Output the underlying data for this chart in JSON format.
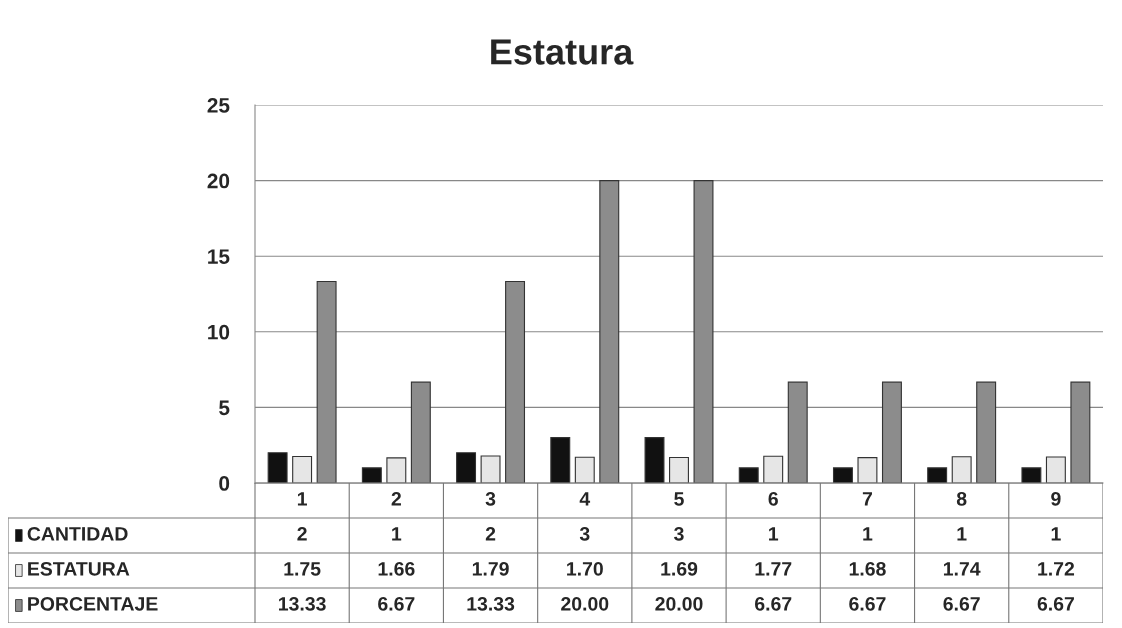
{
  "chart_data": {
    "type": "bar",
    "title": "Estatura",
    "categories": [
      "1",
      "2",
      "3",
      "4",
      "5",
      "6",
      "7",
      "8",
      "9"
    ],
    "series": [
      {
        "name": "CANTIDAD",
        "color": "#111111",
        "values": [
          2,
          1,
          2,
          3,
          3,
          1,
          1,
          1,
          1
        ],
        "value_labels": [
          "2",
          "1",
          "2",
          "3",
          "3",
          "1",
          "1",
          "1",
          "1"
        ]
      },
      {
        "name": "ESTATURA",
        "color": "#e6e6e6",
        "values": [
          1.75,
          1.66,
          1.79,
          1.7,
          1.69,
          1.77,
          1.68,
          1.74,
          1.72
        ],
        "value_labels": [
          "1.75",
          "1.66",
          "1.79",
          "1.70",
          "1.69",
          "1.77",
          "1.68",
          "1.74",
          "1.72"
        ]
      },
      {
        "name": "PORCENTAJE",
        "color": "#8c8c8c",
        "values": [
          13.33,
          6.67,
          13.33,
          20.0,
          20.0,
          6.67,
          6.67,
          6.67,
          6.67
        ],
        "value_labels": [
          "13.33",
          "6.67",
          "13.33",
          "20.00",
          "20.00",
          "6.67",
          "6.67",
          "6.67",
          "6.67"
        ]
      }
    ],
    "ylim": [
      0,
      25
    ],
    "yticks": [
      0,
      5,
      10,
      15,
      20,
      25
    ],
    "grid": "y",
    "legend": "bottom"
  }
}
